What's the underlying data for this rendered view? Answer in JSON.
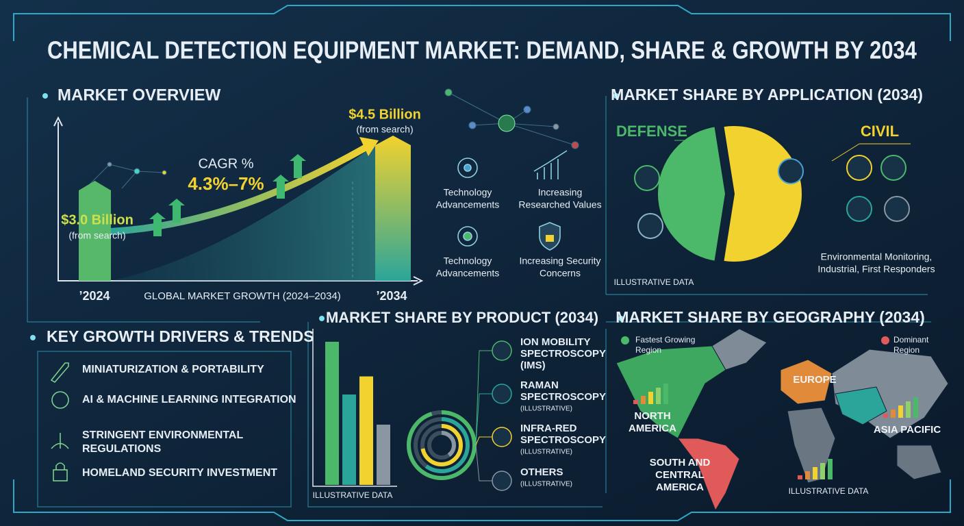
{
  "title": "CHEMICAL DETECTION EQUIPMENT MARKET: DEMAND, SHARE & GROWTH BY 2034",
  "overview": {
    "heading": "MARKET OVERVIEW",
    "values": [
      3.0,
      4.5
    ],
    "value_labels": [
      "$3.0 Billion",
      "$4.5 Billion"
    ],
    "notes": [
      "(from search)",
      "(from search)"
    ],
    "years": [
      "’2024",
      "’2034"
    ],
    "cagr_label": "CAGR %",
    "cagr": "4.3%–7%",
    "axis_label": "GLOBAL MARKET GROWTH (2024–2034)",
    "factors": [
      {
        "lines": [
          "Technology",
          "Advancements"
        ]
      },
      {
        "lines": [
          "Increasing",
          "Researched Values"
        ]
      },
      {
        "lines": [
          "Technology",
          "Advancements"
        ]
      },
      {
        "lines": [
          "Increasing Security",
          "Concerns"
        ]
      }
    ]
  },
  "drivers": {
    "heading": "KEY GROWTH DRIVERS & TRENDS",
    "items": [
      {
        "lines": [
          "MINIATURIZATION & PORTABILITY"
        ]
      },
      {
        "lines": [
          "AI & MACHINE LEARNING INTEGRATION"
        ]
      },
      {
        "lines": [
          "STRINGENT ENVIRONMENTAL",
          "REGULATIONS"
        ]
      },
      {
        "lines": [
          "HOMELAND SECURITY INVESTMENT"
        ]
      }
    ]
  },
  "product": {
    "heading": "MARKET SHARE BY PRODUCT (2034)",
    "note": "ILLUSTRATIVE DATA",
    "segments": [
      {
        "lines": [
          "ION MOBILITY",
          "SPECTROSCOPY",
          "(IMS)"
        ],
        "value": 95,
        "color": "#4cb86a"
      },
      {
        "lines": [
          "RAMAN",
          "SPECTROSCOPY"
        ],
        "sub": "(ILLUSTRATIVE)",
        "value": 60,
        "color": "#2ba59a"
      },
      {
        "lines": [
          "INFRA-RED",
          "SPECTROSCOPY"
        ],
        "sub": "(ILLUSTRATIVE)",
        "value": 72,
        "color": "#f2d22e"
      },
      {
        "lines": [
          "OTHERS"
        ],
        "sub": "(ILLUSTRATIVE)",
        "value": 40,
        "color": "#8a97a3"
      }
    ]
  },
  "application": {
    "heading": "MARKET SHARE BY APPLICATION (2034)",
    "segments": [
      {
        "label": "DEFENSE",
        "value": 45,
        "color": "#4cb86a"
      },
      {
        "label": "CIVIL",
        "value": 55,
        "color": "#f2d22e"
      }
    ],
    "civil_note": [
      "Environmental Monitoring,",
      "Industrial, First Responders"
    ],
    "note": "ILLUSTRATIVE DATA"
  },
  "geography": {
    "heading": "MARKET SHARE BY GEOGRAPHY (2034)",
    "legend": [
      {
        "lines": [
          "Fastest Growing",
          "Region"
        ],
        "color": "#4cb86a"
      },
      {
        "lines": [
          "Dominant",
          "Region"
        ],
        "color": "#e05a5a"
      }
    ],
    "regions": [
      {
        "lines": [
          "NORTH",
          "AMERICA"
        ]
      },
      {
        "lines": [
          "EUROPE"
        ]
      },
      {
        "lines": [
          "ASIA PACIFIC"
        ]
      },
      {
        "lines": [
          "SOUTH AND",
          "CENTRAL",
          "AMERICA"
        ]
      }
    ],
    "note": "ILLUSTRATIVE DATA"
  }
}
